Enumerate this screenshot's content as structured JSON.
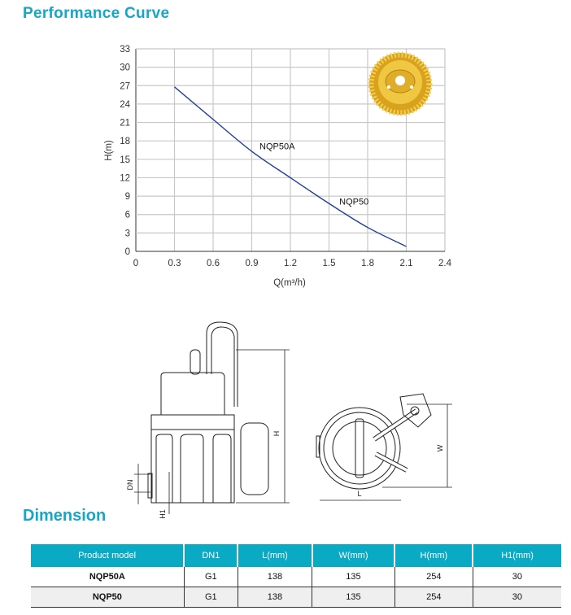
{
  "headings": {
    "performance": "Performance Curve",
    "dimension": "Dimension"
  },
  "chart_data": {
    "type": "line",
    "title": "",
    "xlabel": "Q(m³/h)",
    "ylabel": "H(m)",
    "xlim": [
      0,
      2.4
    ],
    "ylim": [
      0,
      33
    ],
    "xticks": [
      "0",
      "0.3",
      "0.6",
      "0.9",
      "1.2",
      "1.5",
      "1.8",
      "2.1",
      "2.4"
    ],
    "yticks": [
      "0",
      "3",
      "6",
      "9",
      "12",
      "15",
      "18",
      "21",
      "24",
      "27",
      "30",
      "33"
    ],
    "grid": true,
    "series": [
      {
        "x": [
          0.3,
          0.6,
          0.9,
          1.2,
          1.5,
          1.8,
          2.1
        ],
        "y": [
          26.8,
          21.5,
          16.3,
          12.0,
          7.8,
          3.9,
          0.8
        ],
        "color": "#1f3f9a"
      }
    ],
    "annotations": [
      {
        "text": "NQP50A",
        "x": 0.96,
        "y": 16.6
      },
      {
        "text": "NQP50",
        "x": 1.58,
        "y": 7.6
      }
    ]
  },
  "drawing_labels": {
    "H": "H",
    "W": "W",
    "L": "L",
    "DN": "DN",
    "H1": "H1"
  },
  "table": {
    "headers": [
      "Product model",
      "DN1",
      "L(mm)",
      "W(mm)",
      "H(mm)",
      "H1(mm)"
    ],
    "rows": [
      [
        "NQP50A",
        "G1",
        "138",
        "135",
        "254",
        "30"
      ],
      [
        "NQP50",
        "G1",
        "138",
        "135",
        "254",
        "30"
      ]
    ]
  },
  "colors": {
    "accent": "#16a7c6",
    "table_header": "#0aa9c4",
    "curve": "#1f3f9a",
    "impeller": "#e8b830"
  }
}
